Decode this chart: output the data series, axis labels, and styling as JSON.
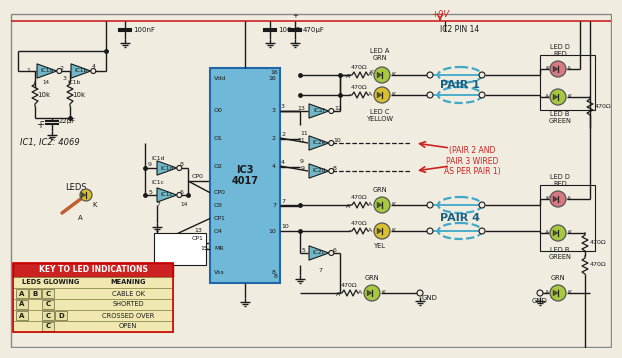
{
  "bg_color": "#f0ece0",
  "power_color": "#cc2222",
  "wire_color": "#1a1a1a",
  "pair_line_color": "#40a8c8",
  "ic3_color": "#70b8d8",
  "buffer_color": "#70b8c8",
  "led_green": "#a8c840",
  "led_yellow": "#d8c030",
  "led_red": "#e06060",
  "led_pink": "#d87880",
  "key_header_bg": "#cc2222",
  "key_header_fg": "#ffffff",
  "key_row_bg": "#f0e8b0",
  "power_label": "+9V",
  "ic_label": "IC1, IC2: 4069",
  "ic3_label": "IC3\n4017",
  "ic2_pin14_label": "IC2 PIN 14",
  "leds_label": "LEDS",
  "pair1_label": "PAIR 1",
  "pair4_label": "PAIR 4",
  "pair23_note": "(PAIR 2 AND\nPAIR 3 WIRED\nAS PER PAIR 1)",
  "key_title": "KEY TO LED INDICATIONS",
  "key_col1": "LEDS GLOWING",
  "key_col2": "MEANING",
  "key_rows": [
    [
      "A",
      "B",
      "C",
      "",
      "CABLE OK"
    ],
    [
      "A",
      "",
      "C",
      "",
      "SHORTED"
    ],
    [
      "A",
      "",
      "C",
      "D",
      "CROSSED OVER"
    ],
    [
      "",
      "",
      "C",
      "",
      "OPEN"
    ]
  ]
}
